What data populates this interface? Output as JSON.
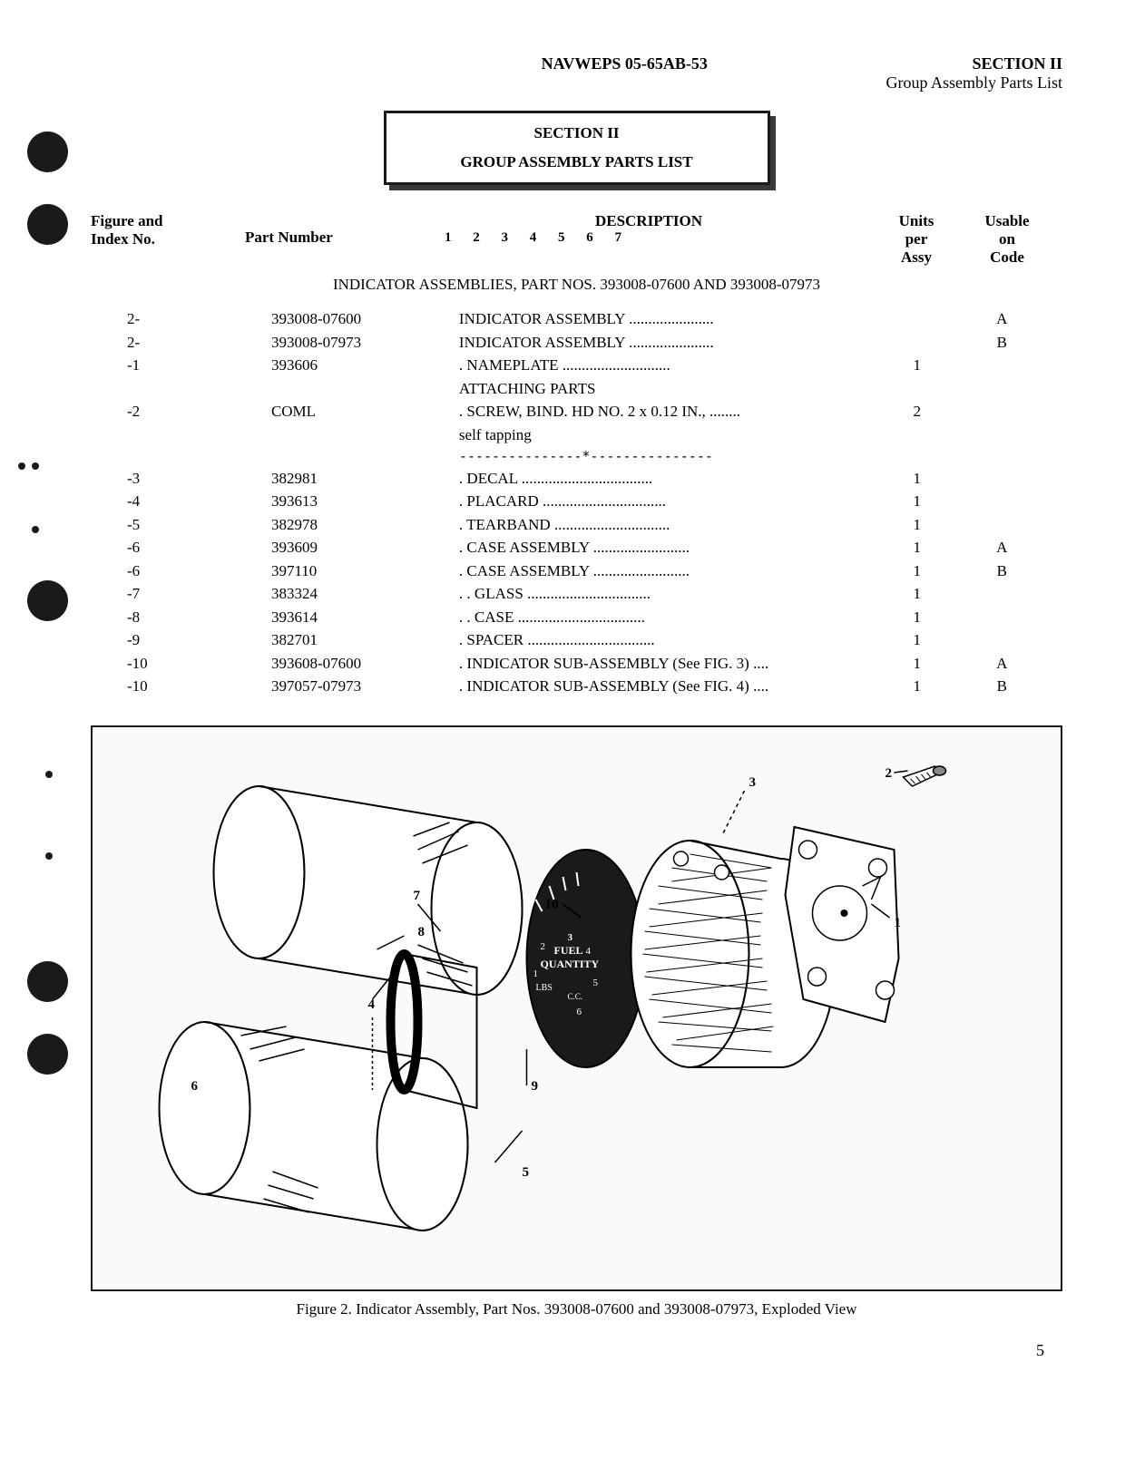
{
  "header": {
    "doc_number": "NAVWEPS 05-65AB-53",
    "section_label": "SECTION II",
    "section_subtitle": "Group Assembly Parts List"
  },
  "section_box": {
    "line1": "SECTION II",
    "line2": "GROUP ASSEMBLY PARTS LIST"
  },
  "table_headers": {
    "index": "Figure and\nIndex No.",
    "part": "Part Number",
    "desc_label": "DESCRIPTION",
    "desc_numbers": "1  2  3  4  5  6  7",
    "units": "Units\nper\nAssy",
    "code": "Usable\non\nCode"
  },
  "subtitle": "INDICATOR ASSEMBLIES, PART NOS. 393008-07600 AND 393008-07973",
  "rows": [
    {
      "index": "2-",
      "part": "393008-07600",
      "desc": "INDICATOR ASSEMBLY",
      "dots": "......................",
      "units": "",
      "code": "A"
    },
    {
      "index": "2-",
      "part": "393008-07973",
      "desc": "INDICATOR ASSEMBLY",
      "dots": "......................",
      "units": "",
      "code": "B"
    },
    {
      "index": "-1",
      "part": "393606",
      "desc": ".  NAMEPLATE",
      "dots": "............................",
      "units": "1",
      "code": ""
    },
    {
      "index": "",
      "part": "",
      "desc": "ATTACHING PARTS",
      "dots": "",
      "units": "",
      "code": ""
    },
    {
      "index": "-2",
      "part": "COML",
      "desc": ".  SCREW, BIND. HD NO. 2 x 0.12 IN.,",
      "dots": "........",
      "units": "2",
      "code": ""
    },
    {
      "index": "",
      "part": "",
      "desc": "    self tapping",
      "dots": "",
      "units": "",
      "code": ""
    }
  ],
  "separator": "---------------*---------------",
  "rows2": [
    {
      "index": "-3",
      "part": "382981",
      "desc": ".  DECAL",
      "dots": "..................................",
      "units": "1",
      "code": ""
    },
    {
      "index": "-4",
      "part": "393613",
      "desc": ".  PLACARD",
      "dots": "................................",
      "units": "1",
      "code": ""
    },
    {
      "index": "-5",
      "part": "382978",
      "desc": ".  TEARBAND",
      "dots": "..............................",
      "units": "1",
      "code": ""
    },
    {
      "index": "-6",
      "part": "393609",
      "desc": ".  CASE ASSEMBLY",
      "dots": ".........................",
      "units": "1",
      "code": "A"
    },
    {
      "index": "-6",
      "part": "397110",
      "desc": ".  CASE ASSEMBLY",
      "dots": ".........................",
      "units": "1",
      "code": "B"
    },
    {
      "index": "-7",
      "part": "383324",
      "desc": ".  .  GLASS",
      "dots": "................................",
      "units": "1",
      "code": ""
    },
    {
      "index": "-8",
      "part": "393614",
      "desc": ".  .  CASE",
      "dots": ".................................",
      "units": "1",
      "code": ""
    },
    {
      "index": "-9",
      "part": "382701",
      "desc": ".  SPACER",
      "dots": ".................................",
      "units": "1",
      "code": ""
    },
    {
      "index": "-10",
      "part": "393608-07600",
      "desc": ".  INDICATOR SUB-ASSEMBLY (See FIG. 3)",
      "dots": "....",
      "units": "1",
      "code": "A"
    },
    {
      "index": "-10",
      "part": "397057-07973",
      "desc": ".  INDICATOR SUB-ASSEMBLY (See FIG. 4)",
      "dots": "....",
      "units": "1",
      "code": "B"
    }
  ],
  "figure": {
    "caption": "Figure 2.  Indicator Assembly, Part Nos. 393008-07600 and 393008-07973, Exploded View",
    "callouts": [
      "1",
      "2",
      "3",
      "4",
      "5",
      "6",
      "7",
      "8",
      "9",
      "10"
    ],
    "gauge_text1": "FUEL",
    "gauge_text2": "QUANTITY",
    "gauge_text3": "LBS",
    "gauge_numbers": [
      "1",
      "2",
      "3",
      "4",
      "5",
      "6",
      "C.C."
    ]
  },
  "page_number": "5",
  "colors": {
    "text": "#1a1a1a",
    "background": "#ffffff",
    "shadow": "#3a3a3a"
  }
}
